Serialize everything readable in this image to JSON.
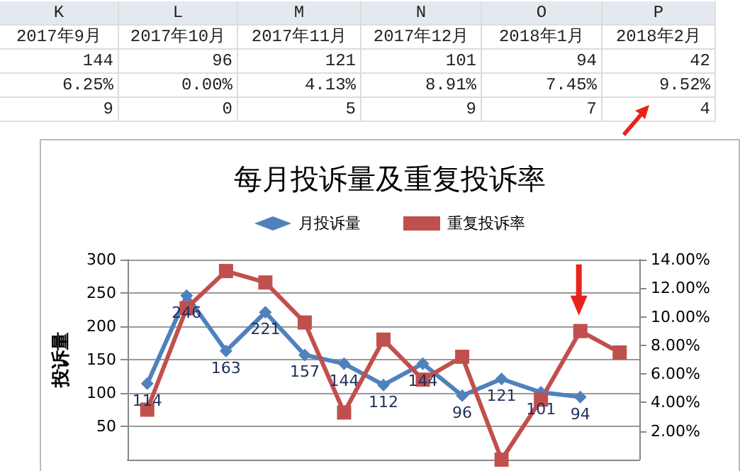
{
  "chart_data": {
    "type": "line",
    "title": "每月投诉量及重复投诉率",
    "ylabel": "投诉量",
    "categories": [
      null,
      null,
      null,
      null,
      null,
      null,
      null,
      null,
      null,
      null,
      null,
      null,
      null
    ],
    "series": [
      {
        "name": "月投诉量",
        "color": "#4f81bd",
        "marker": "diamond",
        "values": [
          114,
          246,
          163,
          221,
          157,
          144,
          112,
          144,
          96,
          121,
          101,
          94,
          null
        ],
        "value_labels": [
          "114",
          "246",
          "163",
          "221",
          "157",
          "144",
          "112",
          "144",
          "96",
          "121",
          "101",
          "94",
          null
        ]
      },
      {
        "name": "重复投诉率",
        "color": "#c0504d",
        "marker": "square",
        "axis": "y2",
        "values": [
          3.5,
          10.6,
          13.2,
          12.4,
          9.6,
          3.3,
          8.4,
          5.6,
          7.2,
          0,
          4.2,
          9.0,
          7.5
        ]
      }
    ],
    "ylim": [
      0,
      300
    ],
    "yticks": [
      50,
      100,
      150,
      200,
      250,
      300
    ],
    "y2lim": [
      0,
      14
    ],
    "y2ticks": [
      {
        "value": 2,
        "label": "2.00%"
      },
      {
        "value": 4,
        "label": "4.00%"
      },
      {
        "value": 6,
        "label": "6.00%"
      },
      {
        "value": 8,
        "label": "8.00%"
      },
      {
        "value": 10,
        "label": "10.00%"
      },
      {
        "value": 12,
        "label": "12.00%"
      },
      {
        "value": 14,
        "label": "14.00%"
      }
    ],
    "grid": "y",
    "legend": "top",
    "line_style": "solid",
    "annotations": [
      "K",
      "L",
      "M",
      "N",
      "O",
      "P",
      "2017年9月",
      "2017年10月",
      "2017年11月",
      "2017年12月",
      "2018年1月",
      "2018年2月",
      "144",
      "96",
      "121",
      "101",
      "94",
      "42",
      "6.25%",
      "0.00%",
      "4.13%",
      "8.91%",
      "7.45%",
      "9.52%",
      "9",
      "0",
      "5",
      "9",
      "7",
      "4"
    ]
  }
}
